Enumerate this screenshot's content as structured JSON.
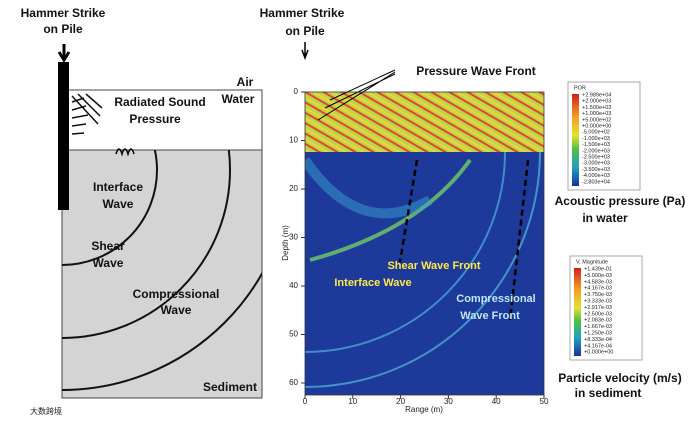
{
  "left_panel": {
    "strike_label": [
      "Hammer Strike",
      "on Pile"
    ],
    "air": "Air",
    "water": "Water",
    "radiated": [
      "Radiated Sound",
      "Pressure"
    ],
    "interface": [
      "Interface",
      "Wave"
    ],
    "shear": [
      "Shear",
      "Wave"
    ],
    "compressional": [
      "Compressional",
      "Wave"
    ],
    "sediment": "Sediment"
  },
  "right_panel": {
    "strike_label": [
      "Hammer Strike",
      "on Pile"
    ],
    "pressure_front": "Pressure Wave Front",
    "interface": "Interface Wave",
    "shear_front": "Shear Wave Front",
    "compressional_front": [
      "Compressional",
      "Wave Front"
    ],
    "y_label": "Depth (m)",
    "x_label": "Range (m)",
    "yticks": [
      0,
      10,
      20,
      30,
      40,
      50,
      60
    ],
    "xticks": [
      0,
      10,
      20,
      30,
      40,
      50
    ]
  },
  "legend_pressure": {
    "title": "POR",
    "values": [
      "+2.989e+04",
      "+2.000e+03",
      "+1.500e+03",
      "+1.000e+03",
      "+5.000e+02",
      "+0.000e+00",
      "-5.000e+02",
      "-1.000e+03",
      "-1.500e+03",
      "-2.000e+03",
      "-2.500e+03",
      "-3.000e+03",
      "-3.500e+03",
      "-4.000e+03",
      "-2.803e+04"
    ],
    "caption": [
      "Acoustic pressure (Pa)",
      "in water"
    ]
  },
  "legend_velocity": {
    "title": "V, Magnitude",
    "values": [
      "+1.439e-01",
      "+5.000e-03",
      "+4.583e-03",
      "+4.167e-03",
      "+3.750e-03",
      "+3.333e-03",
      "+2.917e-03",
      "+2.500e-03",
      "+2.083e-03",
      "+1.667e-03",
      "+1.250e-03",
      "+8.333e-04",
      "+4.167e-04",
      "+0.000e+00"
    ],
    "caption": [
      "Particle velocity (m/s)",
      "in sediment"
    ]
  },
  "watermark": "大数跨境"
}
